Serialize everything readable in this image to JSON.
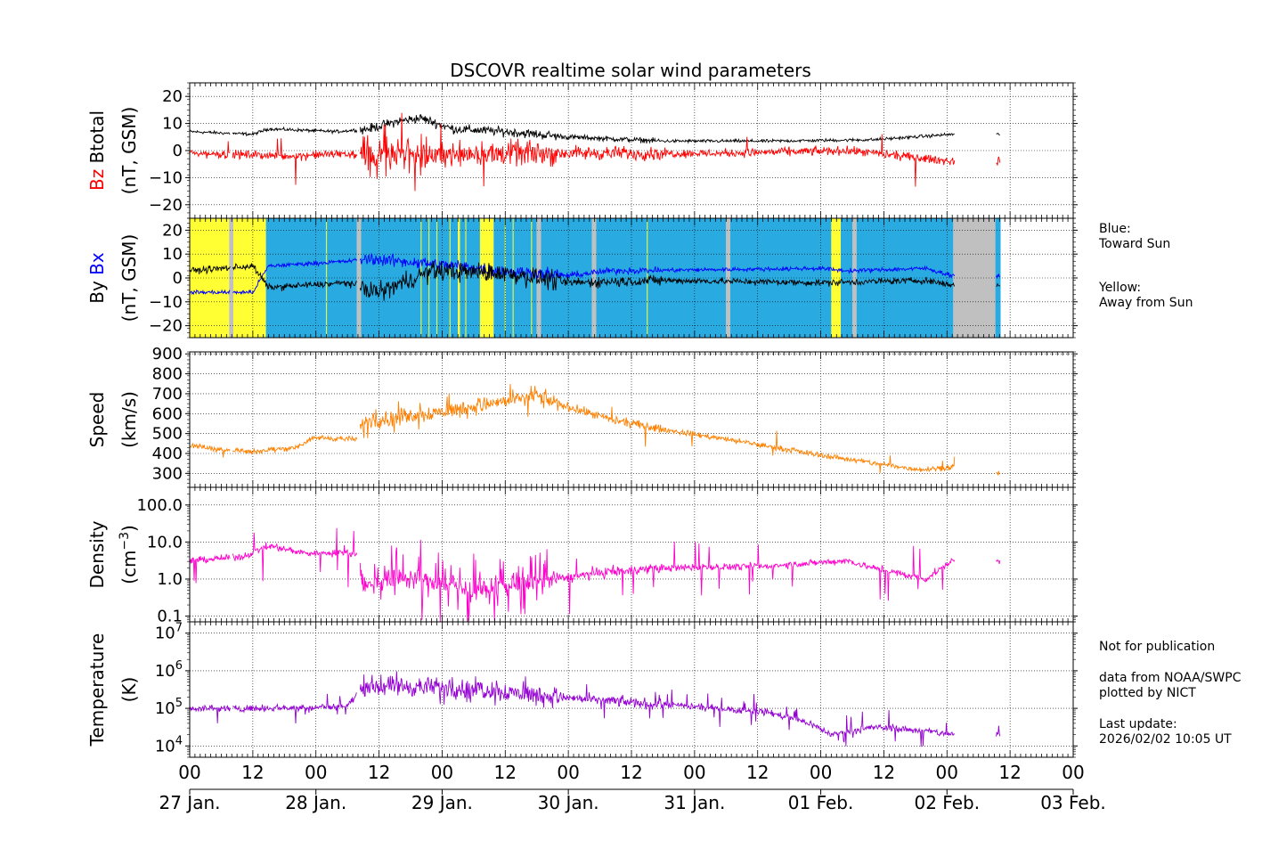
{
  "chart_data": {
    "type": "line",
    "title": "DSCOVR realtime solar wind parameters",
    "x_axis": {
      "hour_ticks": [
        "00",
        "12",
        "00",
        "12",
        "00",
        "12",
        "00",
        "12",
        "00",
        "12",
        "00",
        "12",
        "00",
        "12",
        "00"
      ],
      "day_labels": [
        "27 Jan.",
        "28 Jan.",
        "29 Jan.",
        "30 Jan.",
        "31 Jan.",
        "01 Feb.",
        "02 Feb.",
        "03 Feb."
      ],
      "range_hours": [
        0,
        168
      ]
    },
    "panels": [
      {
        "id": "mag-bz-bt",
        "ylabel_parts": [
          {
            "text": "Bz",
            "color": "#ff0000"
          },
          {
            "text": "Btotal",
            "color": "#000000"
          }
        ],
        "ylabel_units": "(nT, GSM)",
        "scale": "linear",
        "ylim": [
          -25,
          25
        ],
        "ticks": [
          20,
          10,
          0,
          -10,
          -20
        ],
        "tick_labels": [
          "20",
          "10",
          "0",
          "−10",
          "−20"
        ],
        "series": [
          {
            "name": "Btotal",
            "color": "#000000"
          },
          {
            "name": "Bz",
            "color": "#ff0000"
          }
        ]
      },
      {
        "id": "mag-by-bx",
        "ylabel_parts": [
          {
            "text": "By",
            "color": "#000000"
          },
          {
            "text": "Bx",
            "color": "#0000ff"
          }
        ],
        "ylabel_units": "(nT, GSM)",
        "scale": "linear",
        "ylim": [
          -25,
          25
        ],
        "ticks": [
          20,
          10,
          0,
          -10,
          -20
        ],
        "tick_labels": [
          "20",
          "10",
          "0",
          "−10",
          "−20"
        ],
        "series": [
          {
            "name": "Bx",
            "color": "#0000ff"
          },
          {
            "name": "By",
            "color": "#000000"
          }
        ],
        "sector_bands": [
          {
            "start": 0,
            "end": 7.5,
            "sector": "away"
          },
          {
            "start": 7.5,
            "end": 8.3,
            "sector": "gap"
          },
          {
            "start": 8.3,
            "end": 14.5,
            "sector": "away"
          },
          {
            "start": 14.5,
            "end": 31.8,
            "sector": "toward"
          },
          {
            "start": 31.8,
            "end": 32.6,
            "sector": "gap"
          },
          {
            "start": 32.6,
            "end": 51,
            "sector": "toward"
          },
          {
            "start": 51,
            "end": 51.4,
            "sector": "away"
          },
          {
            "start": 51.4,
            "end": 55.2,
            "sector": "toward"
          },
          {
            "start": 55.2,
            "end": 57.8,
            "sector": "away"
          },
          {
            "start": 57.8,
            "end": 66,
            "sector": "toward"
          },
          {
            "start": 66,
            "end": 66.8,
            "sector": "gap"
          },
          {
            "start": 66.8,
            "end": 76.5,
            "sector": "toward"
          },
          {
            "start": 76.5,
            "end": 77.3,
            "sector": "gap"
          },
          {
            "start": 77.3,
            "end": 102,
            "sector": "toward"
          },
          {
            "start": 102,
            "end": 102.8,
            "sector": "gap"
          },
          {
            "start": 102.8,
            "end": 122,
            "sector": "toward"
          },
          {
            "start": 122,
            "end": 123.8,
            "sector": "away"
          },
          {
            "start": 123.8,
            "end": 126,
            "sector": "toward"
          },
          {
            "start": 126,
            "end": 126.8,
            "sector": "gap"
          },
          {
            "start": 126.8,
            "end": 145.2,
            "sector": "toward"
          },
          {
            "start": 145.2,
            "end": 153.2,
            "sector": "gap"
          },
          {
            "start": 153.2,
            "end": 154.2,
            "sector": "toward"
          }
        ],
        "sector_lines": [
          26,
          44,
          45.5,
          47,
          49.5,
          52.5,
          60,
          61.5,
          65,
          87
        ]
      },
      {
        "id": "speed",
        "ylabel_parts": [
          {
            "text": "Speed",
            "color": "#000000"
          }
        ],
        "ylabel_units": "(km/s)",
        "scale": "linear",
        "ylim": [
          230,
          910
        ],
        "ticks": [
          900,
          800,
          700,
          600,
          500,
          400,
          300
        ],
        "tick_labels": [
          "900",
          "800",
          "700",
          "600",
          "500",
          "400",
          "300"
        ],
        "series": [
          {
            "name": "Speed",
            "color": "#ff8000"
          }
        ]
      },
      {
        "id": "density",
        "ylabel_parts": [
          {
            "text": "Density",
            "color": "#000000"
          }
        ],
        "ylabel_units": "(cm",
        "ylabel_units_sup": "−3",
        "ylabel_units_end": ")",
        "scale": "log",
        "ylim": [
          0.07,
          300
        ],
        "ticks": [
          100,
          10,
          1,
          0.1
        ],
        "tick_labels": [
          "100.0",
          "10.0",
          "1.0",
          "0.1"
        ],
        "series": [
          {
            "name": "Density",
            "color": "#ff00cc"
          }
        ]
      },
      {
        "id": "temperature",
        "ylabel_parts": [
          {
            "text": "Temperature",
            "color": "#000000"
          }
        ],
        "ylabel_units": "(K)",
        "scale": "log",
        "ylim": [
          5000,
          20000000
        ],
        "ticks": [
          10000000,
          1000000,
          100000,
          10000
        ],
        "tick_labels": [
          {
            "base": "10",
            "exp": "7"
          },
          {
            "base": "10",
            "exp": "6"
          },
          {
            "base": "10",
            "exp": "5"
          },
          {
            "base": "10",
            "exp": "4"
          }
        ],
        "series": [
          {
            "name": "Temperature",
            "color": "#9400d3"
          }
        ]
      }
    ],
    "sector_legend": {
      "toward": {
        "line1": "Blue:",
        "line2": "Toward Sun",
        "color": "#29abe2"
      },
      "away": {
        "line1": "Yellow:",
        "line2": "Away from Sun",
        "color": "#ffff33"
      },
      "gap_color": "#c0c0c0"
    },
    "colors": {
      "btotal": "#000000",
      "bz": "#ff0000",
      "bx": "#0000ff",
      "by": "#000000",
      "speed": "#ff8000",
      "density": "#ff00cc",
      "temperature": "#9400d3"
    }
  },
  "notes": {
    "not_for_publication": "Not for publication",
    "source_line1": "data from NOAA/SWPC",
    "source_line2": "plotted by NICT",
    "update_label": "Last update:",
    "update_time": "2026/02/02 10:05 UT"
  }
}
